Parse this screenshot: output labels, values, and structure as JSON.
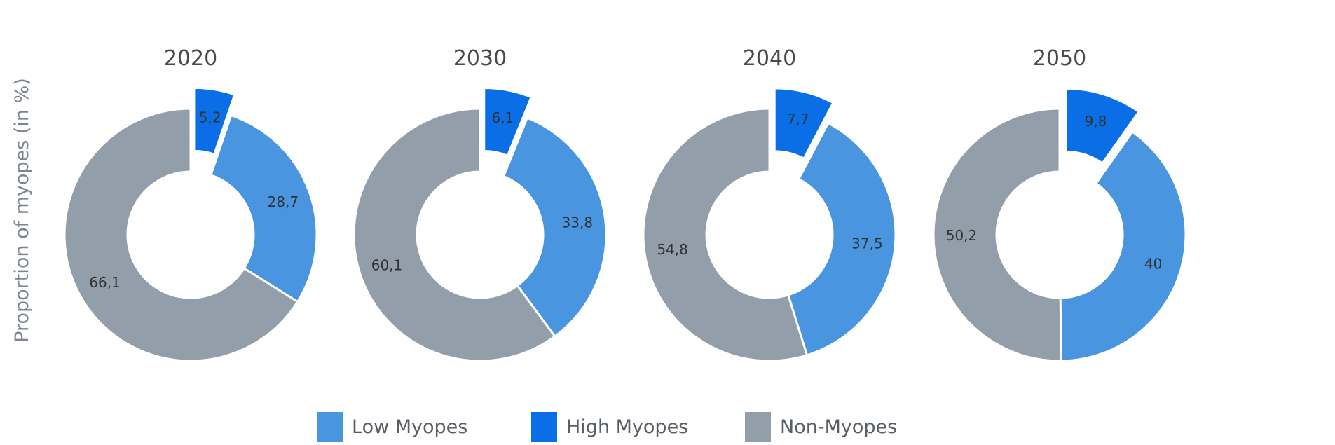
{
  "chart_data": {
    "type": "pie",
    "variant": "donut",
    "ylabel": "Proportion of myopes (in %)",
    "categories": [
      "2020",
      "2030",
      "2040",
      "2050"
    ],
    "series": [
      {
        "name": "Low Myopes",
        "color": "#4a95df",
        "values": [
          "28,7",
          "33,8",
          "37,5",
          "40"
        ]
      },
      {
        "name": "High Myopes",
        "color": "#0a6fe6",
        "values": [
          "5,2",
          "6,1",
          "7,7",
          "9,8"
        ],
        "exploded": true
      },
      {
        "name": "Non-Myopes",
        "color": "#939eab",
        "values": [
          "66,1",
          "60,1",
          "54,8",
          "50,2"
        ]
      }
    ],
    "legend_position": "bottom-center"
  }
}
